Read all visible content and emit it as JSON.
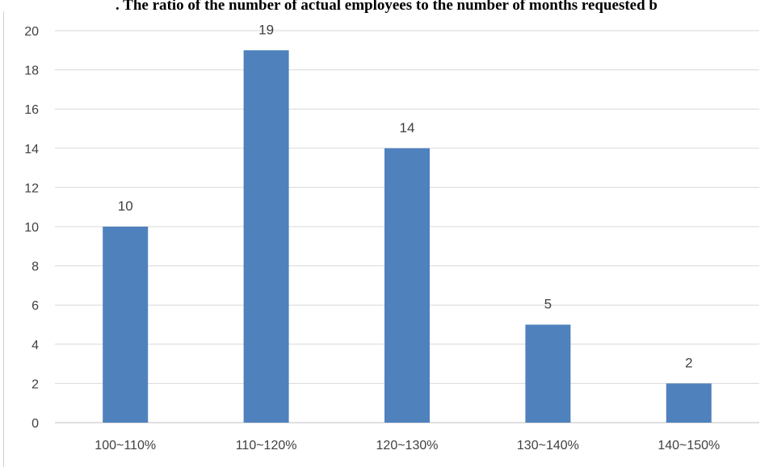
{
  "chart_data": {
    "type": "bar",
    "title": ". The ratio of the number of actual employees to the number of months requested b",
    "xlabel": "",
    "ylabel": "",
    "categories": [
      "100~110%",
      "110~120%",
      "120~130%",
      "130~140%",
      "140~150%"
    ],
    "values": [
      10,
      19,
      14,
      5,
      2
    ],
    "ylim": [
      0,
      20
    ],
    "yticks": [
      0,
      2,
      4,
      6,
      8,
      10,
      12,
      14,
      16,
      18,
      20
    ],
    "grid": true,
    "legend": "none",
    "bar_color": "#4f81bd",
    "grid_color": "#d9d9d9"
  }
}
